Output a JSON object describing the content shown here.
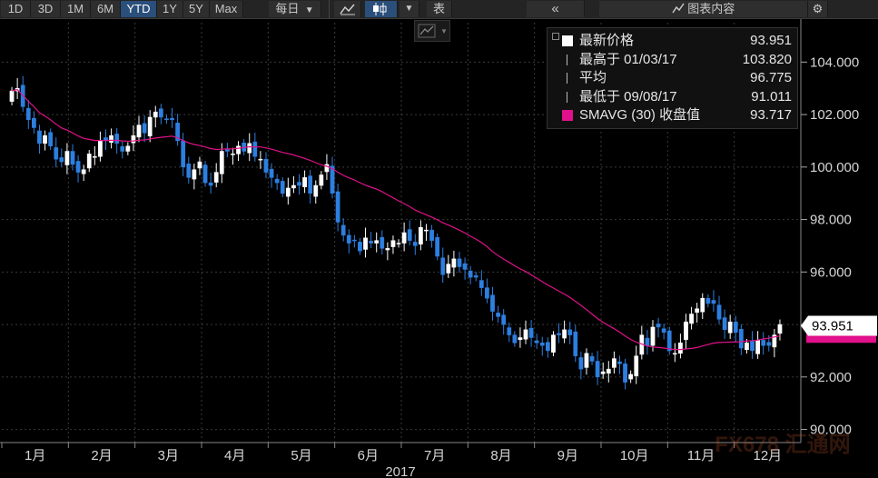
{
  "toolbar": {
    "periods": [
      "1D",
      "3D",
      "1M",
      "6M",
      "YTD",
      "1Y",
      "5Y",
      "Max"
    ],
    "active_period": "YTD",
    "frequency": "每日",
    "table_label": "表",
    "collapse_label": "«",
    "content_label": "图表内容"
  },
  "legend": {
    "rows": [
      {
        "label": "最新价格",
        "value": "93.951",
        "color": "#ffffff",
        "icon": "filled-square-icon"
      },
      {
        "label": "最高于 01/03/17",
        "value": "103.820",
        "color": "#bbbbbb",
        "icon": "high-marker-icon"
      },
      {
        "label": "平均",
        "value": "96.775",
        "color": "#bbbbbb",
        "icon": "average-marker-icon"
      },
      {
        "label": "最低于 09/08/17",
        "value": "91.011",
        "color": "#bbbbbb",
        "icon": "low-marker-icon"
      },
      {
        "label": "SMAVG (30) 收盘值",
        "value": "93.717",
        "color": "#e0118a",
        "icon": "magenta-square-icon"
      }
    ]
  },
  "watermark": {
    "text": "FX678 汇通网"
  },
  "chart_data": {
    "type": "candlestick",
    "year_label": "2017",
    "months": [
      "1月",
      "2月",
      "3月",
      "4月",
      "5月",
      "6月",
      "7月",
      "8月",
      "9月",
      "10月",
      "11月",
      "12月"
    ],
    "y_ticks": [
      "104.000",
      "102.000",
      "100.000",
      "98.000",
      "96.000",
      "94.000",
      "92.000",
      "90.000"
    ],
    "ylim": [
      89.5,
      105.5
    ],
    "last_price_label": "93.951",
    "last_price": 93.951,
    "sma_last": 93.717,
    "colors": {
      "up": "#ffffff",
      "down": "#2d7fe0",
      "sma": "#e0118a",
      "grid": "#3a3a3a"
    },
    "close": [
      102.9,
      103.0,
      102.3,
      101.8,
      101.5,
      100.9,
      101.2,
      100.8,
      100.3,
      100.2,
      100.6,
      100.1,
      99.8,
      99.9,
      100.5,
      100.4,
      101.0,
      101.0,
      101.2,
      100.9,
      100.6,
      100.8,
      101.2,
      101.6,
      101.3,
      101.9,
      102.1,
      101.9,
      101.8,
      101.8,
      101.0,
      100.0,
      99.6,
      99.9,
      100.2,
      99.4,
      99.3,
      99.8,
      100.6,
      100.6,
      100.5,
      100.8,
      100.6,
      100.9,
      100.4,
      100.3,
      99.8,
      99.6,
      99.4,
      99.0,
      99.2,
      99.3,
      99.3,
      99.6,
      99.0,
      99.3,
      99.7,
      100.1,
      99.0,
      97.9,
      97.4,
      97.1,
      97.2,
      96.8,
      97.3,
      97.1,
      97.2,
      96.9,
      96.9,
      97.2,
      97.1,
      97.5,
      97.2,
      97.0,
      97.7,
      97.6,
      97.2,
      96.6,
      95.9,
      96.3,
      96.5,
      96.2,
      96.1,
      95.8,
      95.8,
      95.4,
      95.0,
      94.5,
      94.3,
      94.0,
      93.6,
      93.3,
      93.5,
      93.8,
      93.5,
      93.3,
      93.2,
      93.0,
      93.6,
      93.6,
      93.8,
      93.6,
      92.8,
      92.3,
      92.9,
      92.6,
      92.0,
      92.2,
      92.3,
      92.7,
      92.5,
      91.8,
      92.1,
      92.8,
      93.6,
      93.2,
      93.9,
      93.9,
      93.7,
      93.0,
      92.9,
      93.3,
      94.1,
      94.4,
      94.6,
      95.0,
      94.8,
      94.8,
      94.2,
      93.8,
      94.1,
      93.7,
      93.1,
      93.3,
      93.0,
      93.4,
      93.2,
      93.2,
      93.6,
      94.0
    ]
  }
}
